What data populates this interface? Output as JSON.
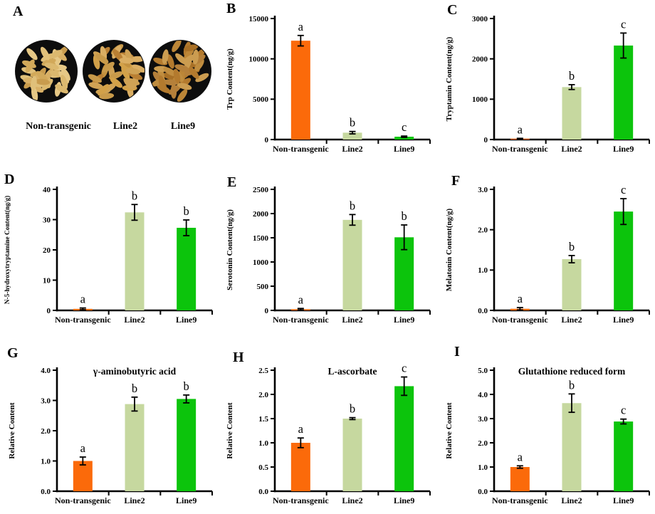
{
  "figure": {
    "panel_letters": [
      "A",
      "B",
      "C",
      "D",
      "E",
      "F",
      "G",
      "H",
      "I"
    ],
    "bar_colors": [
      "#fb6a0a",
      "#c6d89f",
      "#0cc40c"
    ],
    "axis_color": "#000000",
    "photo_panel": {
      "labels": [
        "Non-transgenic",
        "Line2",
        "Line9"
      ],
      "dish_color": "#0d0d0d",
      "seed_palettes": [
        [
          "#dcb96f",
          "#d2a95a",
          "#e6c886",
          "#c99c4e",
          "#d8b066",
          "#e0c07a"
        ],
        [
          "#cfa255",
          "#c3913f",
          "#daae63",
          "#b97f33",
          "#d2a149",
          "#c89a4a"
        ],
        [
          "#c08d3f",
          "#b37a2e",
          "#cb9c50",
          "#a87026",
          "#bc8637",
          "#b5803a"
        ]
      ]
    }
  },
  "chart_data": [
    {
      "panel": "B",
      "type": "bar",
      "title": "",
      "ylabel": "Trp Content(ng/g)",
      "categories": [
        "Non-transgenic",
        "Line2",
        "Line9"
      ],
      "values": [
        12250,
        850,
        350
      ],
      "errors": [
        650,
        150,
        80
      ],
      "sig_letters": [
        "a",
        "b",
        "c"
      ],
      "ylim": [
        0,
        15000
      ],
      "yticks": [
        0,
        5000,
        10000,
        15000
      ],
      "tick_format": "int"
    },
    {
      "panel": "C",
      "type": "bar",
      "title": "",
      "ylabel": "Tryptamin Content(ng/g)",
      "categories": [
        "Non-transgenic",
        "Line2",
        "Line9"
      ],
      "values": [
        20,
        1300,
        2330
      ],
      "errors": [
        10,
        60,
        310
      ],
      "sig_letters": [
        "a",
        "b",
        "c"
      ],
      "ylim": [
        0,
        3000
      ],
      "yticks": [
        0,
        1000,
        2000,
        3000
      ],
      "tick_format": "int"
    },
    {
      "panel": "D",
      "type": "bar",
      "title": "",
      "ylabel": "N-5-hydroxytryptamine Content(ng/g)",
      "categories": [
        "Non-transgenic",
        "Line2",
        "Line9"
      ],
      "values": [
        0.5,
        32.4,
        27.3
      ],
      "errors": [
        0.3,
        2.6,
        2.6
      ],
      "sig_letters": [
        "a",
        "b",
        "b"
      ],
      "ylim": [
        0,
        40
      ],
      "yticks": [
        0,
        10,
        20,
        30,
        40
      ],
      "tick_format": "int"
    },
    {
      "panel": "E",
      "type": "bar",
      "title": "",
      "ylabel": "Serotonin Content(ng/g)",
      "categories": [
        "Non-transgenic",
        "Line2",
        "Line9"
      ],
      "values": [
        25,
        1870,
        1510
      ],
      "errors": [
        15,
        110,
        255
      ],
      "sig_letters": [
        "a",
        "b",
        "b"
      ],
      "ylim": [
        0,
        2500
      ],
      "yticks": [
        0,
        500,
        1000,
        1500,
        2000,
        2500
      ],
      "tick_format": "int"
    },
    {
      "panel": "F",
      "type": "bar",
      "title": "",
      "ylabel": "Melatonin Content(ng/g)",
      "categories": [
        "Non-transgenic",
        "Line2",
        "Line9"
      ],
      "values": [
        0.04,
        1.27,
        2.45
      ],
      "errors": [
        0.03,
        0.09,
        0.32
      ],
      "sig_letters": [
        "a",
        "b",
        "c"
      ],
      "ylim": [
        0,
        3
      ],
      "yticks": [
        0,
        1,
        2,
        3
      ],
      "tick_format": "1dp"
    },
    {
      "panel": "G",
      "type": "bar",
      "title": "γ-aminobutyric acid",
      "ylabel": "Relative Content",
      "categories": [
        "Non-transgenic",
        "Line2",
        "Line9"
      ],
      "values": [
        1.0,
        2.88,
        3.05
      ],
      "errors": [
        0.13,
        0.23,
        0.13
      ],
      "sig_letters": [
        "a",
        "b",
        "b"
      ],
      "ylim": [
        0,
        4
      ],
      "yticks": [
        0,
        1,
        2,
        3,
        4
      ],
      "tick_format": "1dp"
    },
    {
      "panel": "H",
      "type": "bar",
      "title": "L-ascorbate",
      "ylabel": "Relative Content",
      "categories": [
        "Non-transgenic",
        "Line2",
        "Line9"
      ],
      "values": [
        1.0,
        1.5,
        2.17
      ],
      "errors": [
        0.1,
        0.02,
        0.19
      ],
      "sig_letters": [
        "a",
        "b",
        "c"
      ],
      "ylim": [
        0,
        2.5
      ],
      "yticks": [
        0,
        0.5,
        1,
        1.5,
        2,
        2.5
      ],
      "tick_format": "1dp"
    },
    {
      "panel": "I",
      "type": "bar",
      "title": "Glutathione reduced form",
      "ylabel": "Relative Content",
      "categories": [
        "Non-transgenic",
        "Line2",
        "Line9"
      ],
      "values": [
        1.0,
        3.64,
        2.88
      ],
      "errors": [
        0.05,
        0.38,
        0.1
      ],
      "sig_letters": [
        "a",
        "b",
        "c"
      ],
      "ylim": [
        0,
        5
      ],
      "yticks": [
        0,
        1,
        2,
        3,
        4,
        5
      ],
      "tick_format": "1dp"
    }
  ]
}
